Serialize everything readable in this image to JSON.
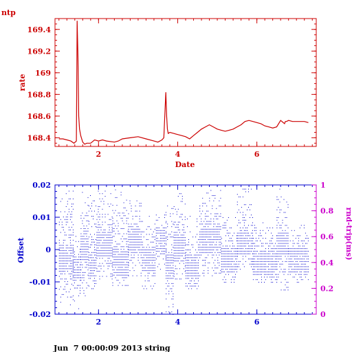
{
  "page": {
    "title": "ntp",
    "footer": "Jun  7 00:00:09 2013 string"
  },
  "colors": {
    "top": "#cc0000",
    "offset": "#0000cc",
    "rtt": "#cc00cc"
  },
  "chart_data": [
    {
      "type": "line",
      "xlabel": "Date",
      "ylabel": "rate",
      "xlim": [
        0.9,
        7.5
      ],
      "ylim": [
        168.32,
        169.5
      ],
      "xticks": [
        2,
        4,
        6
      ],
      "yticks": [
        168.4,
        168.6,
        168.8,
        169,
        169.2,
        169.4
      ],
      "ytick_labels": [
        "168.4",
        "168.6",
        "168.8",
        "169",
        "169.2",
        "169.4"
      ],
      "series": [
        {
          "x": [
            1.0,
            1.1,
            1.2,
            1.3,
            1.38,
            1.44,
            1.46,
            1.48,
            1.5,
            1.52,
            1.55,
            1.6,
            1.65,
            1.7,
            1.8,
            1.9,
            2.0,
            2.1,
            2.2,
            2.4,
            2.5,
            2.6,
            2.8,
            3.0,
            3.2,
            3.4,
            3.5,
            3.6,
            3.65,
            3.7,
            3.72,
            3.74,
            3.76,
            3.8,
            3.9,
            4.0,
            4.1,
            4.2,
            4.3,
            4.4,
            4.5,
            4.6,
            4.7,
            4.8,
            4.9,
            5.0,
            5.1,
            5.2,
            5.3,
            5.4,
            5.5,
            5.6,
            5.7,
            5.8,
            5.9,
            6.0,
            6.1,
            6.2,
            6.3,
            6.4,
            6.5,
            6.6,
            6.7,
            6.72,
            6.75,
            6.8,
            6.9,
            7.0,
            7.1,
            7.2,
            7.3
          ],
          "y": [
            168.39,
            168.39,
            168.38,
            168.37,
            168.35,
            168.37,
            169.48,
            169.15,
            168.6,
            168.48,
            168.42,
            168.36,
            168.34,
            168.35,
            168.35,
            168.38,
            168.37,
            168.38,
            168.37,
            168.36,
            168.37,
            168.39,
            168.4,
            168.41,
            168.39,
            168.37,
            168.36,
            168.38,
            168.4,
            168.82,
            168.6,
            168.48,
            168.44,
            168.45,
            168.44,
            168.43,
            168.42,
            168.41,
            168.39,
            168.42,
            168.45,
            168.48,
            168.5,
            168.52,
            168.5,
            168.48,
            168.47,
            168.46,
            168.47,
            168.48,
            168.5,
            168.52,
            168.55,
            168.56,
            168.55,
            168.54,
            168.53,
            168.51,
            168.5,
            168.49,
            168.5,
            168.56,
            168.53,
            168.55,
            168.55,
            168.56,
            168.55,
            168.55,
            168.55,
            168.55,
            168.54
          ]
        }
      ]
    },
    {
      "type": "scatter",
      "ylabel": "Offset",
      "y2label": "rnd-trip(ms)",
      "xlim": [
        0.9,
        7.5
      ],
      "ylim": [
        -0.02,
        0.02
      ],
      "y2lim": [
        0,
        1
      ],
      "xticks": [
        2,
        4,
        6
      ],
      "yticks": [
        -0.02,
        -0.01,
        0,
        0.01,
        0.02
      ],
      "ytick_labels": [
        "-0.02",
        "-0.01",
        "0",
        "0.01",
        "0.02"
      ],
      "y2ticks": [
        0,
        0.2,
        0.4,
        0.6,
        0.8,
        1
      ],
      "y2tick_labels": [
        "0",
        "0.2",
        "0.4",
        "0.6",
        "0.8",
        "1"
      ],
      "offset_bands": [
        {
          "x": [
            1.0,
            1.35
          ],
          "center": -0.002,
          "lo": -0.017,
          "hi": 0.019
        },
        {
          "x": [
            1.35,
            1.55
          ],
          "center": -0.006,
          "lo": -0.019,
          "hi": 0.005
        },
        {
          "x": [
            1.55,
            1.75
          ],
          "center": 0.001,
          "lo": -0.015,
          "hi": 0.018
        },
        {
          "x": [
            1.75,
            1.95
          ],
          "center": -0.004,
          "lo": -0.012,
          "hi": 0.019
        },
        {
          "x": [
            1.95,
            2.35
          ],
          "center": 0.002,
          "lo": -0.009,
          "hi": 0.019
        },
        {
          "x": [
            2.35,
            2.75
          ],
          "center": -0.004,
          "lo": -0.011,
          "hi": 0.019
        },
        {
          "x": [
            2.75,
            3.1
          ],
          "center": 0.003,
          "lo": -0.008,
          "hi": 0.016
        },
        {
          "x": [
            3.1,
            3.45
          ],
          "center": -0.003,
          "lo": -0.012,
          "hi": 0.012
        },
        {
          "x": [
            3.45,
            3.7
          ],
          "center": 0.003,
          "lo": -0.006,
          "hi": 0.012
        },
        {
          "x": [
            3.7,
            3.9
          ],
          "center": -0.005,
          "lo": -0.02,
          "hi": 0.014
        },
        {
          "x": [
            3.9,
            4.2
          ],
          "center": 0.001,
          "lo": -0.009,
          "hi": 0.019
        },
        {
          "x": [
            4.2,
            4.55
          ],
          "center": -0.005,
          "lo": -0.012,
          "hi": 0.011
        },
        {
          "x": [
            4.55,
            5.1
          ],
          "center": 0.003,
          "lo": -0.008,
          "hi": 0.019
        },
        {
          "x": [
            5.1,
            5.5
          ],
          "center": -0.003,
          "lo": -0.01,
          "hi": 0.012
        },
        {
          "x": [
            5.5,
            5.9
          ],
          "center": 0.002,
          "lo": -0.006,
          "hi": 0.019
        },
        {
          "x": [
            5.9,
            6.5
          ],
          "center": -0.004,
          "lo": -0.01,
          "hi": 0.009
        },
        {
          "x": [
            6.5,
            6.8
          ],
          "center": 0.002,
          "lo": -0.014,
          "hi": 0.019
        },
        {
          "x": [
            6.8,
            7.3
          ],
          "center": -0.003,
          "lo": -0.01,
          "hi": 0.008
        }
      ]
    }
  ]
}
